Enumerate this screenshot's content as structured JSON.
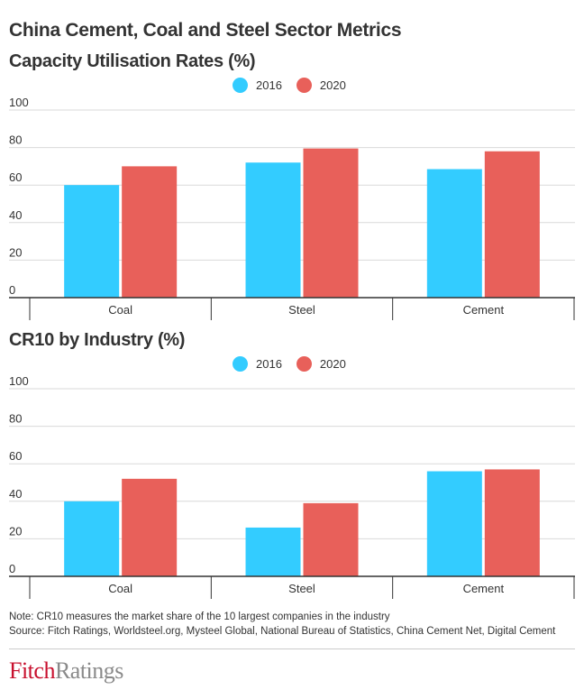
{
  "title": "China Cement, Coal and Steel Sector Metrics",
  "colors": {
    "2016": "#33ccff",
    "2020": "#e8605a"
  },
  "chart_data": [
    {
      "type": "bar",
      "title": "Capacity Utilisation Rates (%)",
      "categories": [
        "Coal",
        "Steel",
        "Cement"
      ],
      "series": [
        {
          "name": "2016",
          "values": [
            60,
            72,
            68.5
          ]
        },
        {
          "name": "2020",
          "values": [
            70,
            79.5,
            78
          ]
        }
      ],
      "yticks": [
        "0",
        "20",
        "40",
        "60",
        "80",
        "100"
      ],
      "ylim": [
        0,
        100
      ],
      "grid": true,
      "legend": "top-center"
    },
    {
      "type": "bar",
      "title": "CR10 by Industry (%)",
      "categories": [
        "Coal",
        "Steel",
        "Cement"
      ],
      "series": [
        {
          "name": "2016",
          "values": [
            40,
            26,
            56
          ]
        },
        {
          "name": "2020",
          "values": [
            52,
            39,
            57
          ]
        }
      ],
      "yticks": [
        "0",
        "20",
        "40",
        "60",
        "80",
        "100"
      ],
      "ylim": [
        0,
        100
      ],
      "grid": true,
      "legend": "top-center"
    }
  ],
  "note": "Note: CR10 measures the market share of the 10 largest companies in the industry",
  "source": "Source: Fitch Ratings, Worldsteel.org, Mysteel Global, National Bureau of Statistics, China Cement Net,  Digital Cement",
  "logo": {
    "part1": "Fitch",
    "part2": "Ratings"
  }
}
